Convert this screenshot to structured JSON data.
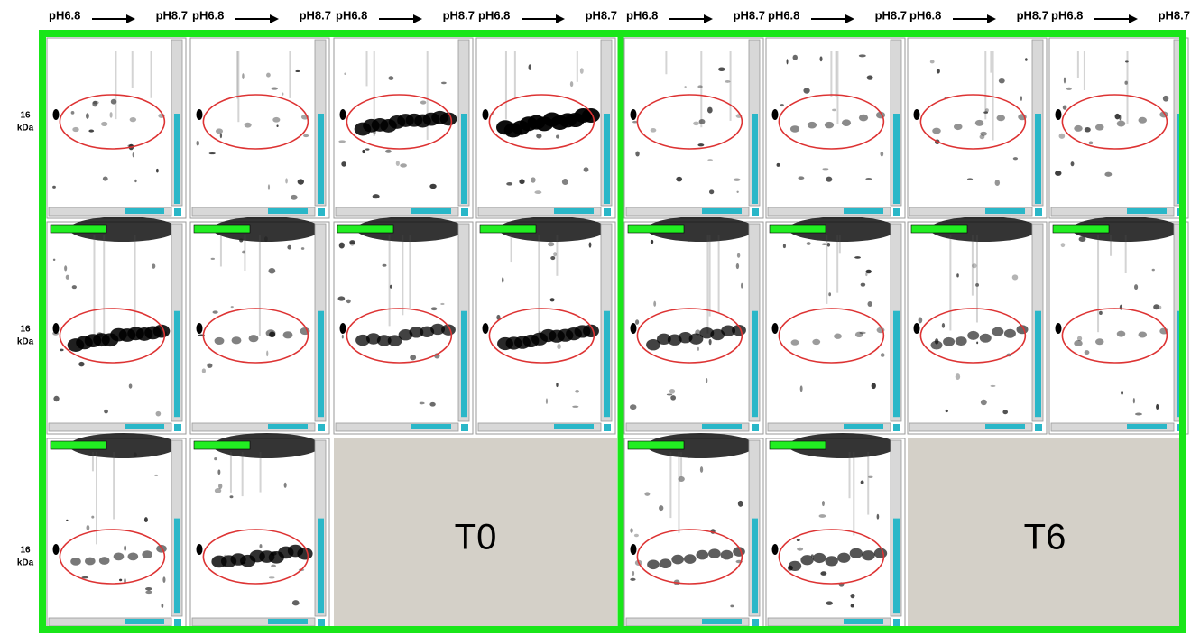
{
  "column_headers": [
    {
      "from": "pH6.8",
      "to": "pH8.7"
    },
    {
      "from": "pH6.8",
      "to": "pH8.7"
    },
    {
      "from": "pH6.8",
      "to": "pH8.7"
    },
    {
      "from": "pH6.8",
      "to": "pH8.7"
    },
    {
      "from": "pH6.8",
      "to": "pH8.7"
    },
    {
      "from": "pH6.8",
      "to": "pH8.7"
    },
    {
      "from": "pH6.8",
      "to": "pH8.7"
    },
    {
      "from": "pH6.8",
      "to": "pH8.7"
    }
  ],
  "row_labels": [
    {
      "mw": "16",
      "unit": "kDa"
    },
    {
      "mw": "16",
      "unit": "kDa"
    },
    {
      "mw": "16",
      "unit": "kDa"
    }
  ],
  "groups": [
    {
      "label": "T0"
    },
    {
      "label": "T6"
    }
  ]
}
